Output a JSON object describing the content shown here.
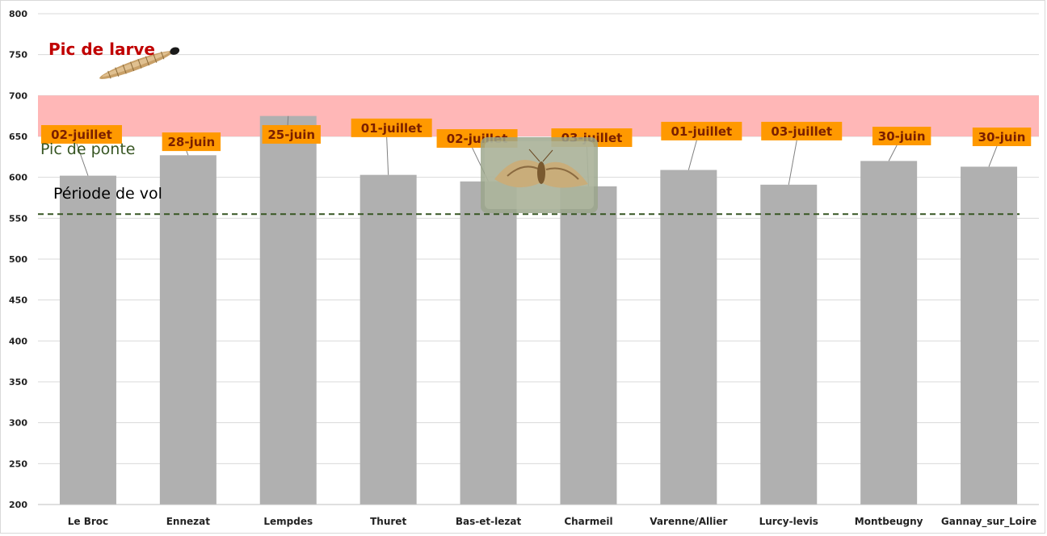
{
  "chart_data": {
    "type": "bar",
    "categories": [
      "Le Broc",
      "Ennezat",
      "Lempdes",
      "Thuret",
      "Bas-et-lezat",
      "Charmeil",
      "Varenne/Allier",
      "Lurcy-levis",
      "Montbeugny",
      "Gannay_sur_Loire"
    ],
    "values": [
      602,
      627,
      675,
      603,
      595,
      589,
      609,
      591,
      620,
      613
    ],
    "data_labels": [
      "02-juillet",
      "28-juin",
      "25-juin",
      "01-juillet",
      "02-juillet",
      "03-juillet",
      "01-juillet",
      "03-juillet",
      "30-juin",
      "30-juin"
    ],
    "label_values": [
      652,
      643,
      652,
      660,
      647,
      648,
      656,
      656,
      650,
      649
    ],
    "ylim": [
      200,
      800
    ],
    "yticks": [
      200,
      250,
      300,
      350,
      400,
      450,
      500,
      550,
      600,
      650,
      700,
      750,
      800
    ],
    "grid": true,
    "band": {
      "from": 650,
      "to": 700,
      "color": "#ffb3b3"
    },
    "flight_line": {
      "value": 555,
      "color": "#375623"
    },
    "annotations": {
      "larve": "Pic de larve",
      "ponte": "Pic de ponte",
      "vol": "Période de vol"
    },
    "colors": {
      "bar": "#b0b0b0",
      "label_bg": "#ff9900",
      "label_text": "#7a1f00",
      "grid": "#d9d9d9"
    },
    "icons": [
      "larva-icon",
      "moth-icon"
    ]
  }
}
